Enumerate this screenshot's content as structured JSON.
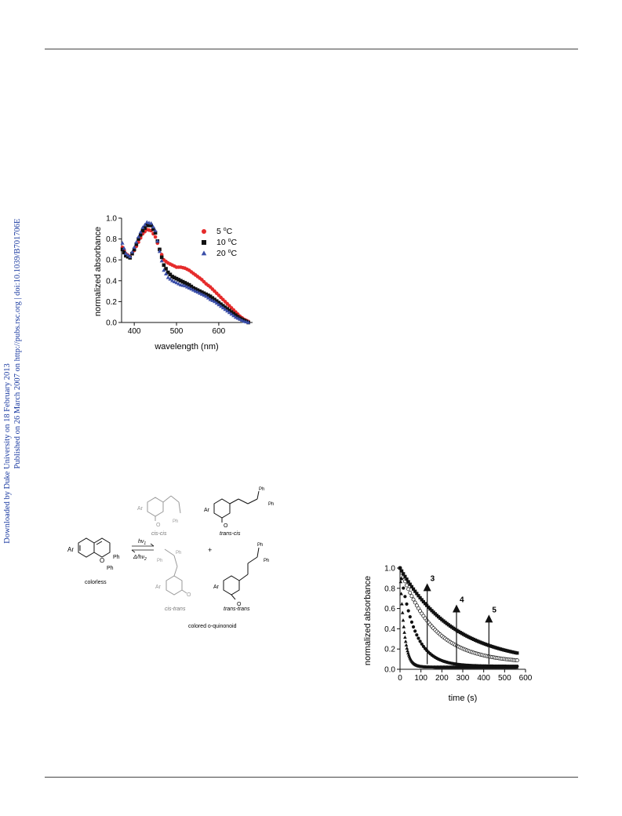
{
  "sidebar": {
    "line1": "Downloaded by Duke University on 18 February 2013",
    "line2": "Published on 26 March 2007 on http://pubs.rsc.org | doi:10.1039/B701706E",
    "color": "#1a3aa0"
  },
  "chart_data": [
    {
      "type": "scatter",
      "xlabel": "wavelength (nm)",
      "ylabel": "normalized absorbance",
      "xlim": [
        370,
        680
      ],
      "ylim": [
        0,
        1.0
      ],
      "xticks": [
        400,
        500,
        600
      ],
      "yticks": [
        0.0,
        0.2,
        0.4,
        0.6,
        0.8,
        1.0
      ],
      "legend_position": "top-right",
      "series": [
        {
          "name": "5 °C",
          "legend_value": "5",
          "unit": "°C",
          "color": "#e52b2b",
          "marker": "circle",
          "x": [
            372,
            380,
            390,
            400,
            410,
            420,
            430,
            440,
            450,
            460,
            470,
            480,
            490,
            500,
            510,
            520,
            530,
            540,
            550,
            560,
            570,
            580,
            590,
            600,
            610,
            620,
            630,
            640,
            650,
            660,
            670
          ],
          "y": [
            0.72,
            0.66,
            0.63,
            0.69,
            0.77,
            0.85,
            0.89,
            0.88,
            0.82,
            0.7,
            0.6,
            0.57,
            0.55,
            0.53,
            0.53,
            0.52,
            0.5,
            0.47,
            0.44,
            0.41,
            0.37,
            0.34,
            0.3,
            0.26,
            0.22,
            0.18,
            0.14,
            0.1,
            0.06,
            0.03,
            0.01
          ]
        },
        {
          "name": "10 °C",
          "legend_value": "10",
          "unit": "°C",
          "color": "#111111",
          "marker": "square",
          "x": [
            372,
            380,
            390,
            400,
            410,
            420,
            430,
            440,
            450,
            460,
            470,
            480,
            490,
            500,
            510,
            520,
            530,
            540,
            550,
            560,
            570,
            580,
            590,
            600,
            610,
            620,
            630,
            640,
            650,
            660,
            670
          ],
          "y": [
            0.7,
            0.64,
            0.62,
            0.7,
            0.8,
            0.88,
            0.93,
            0.93,
            0.86,
            0.7,
            0.55,
            0.48,
            0.44,
            0.42,
            0.4,
            0.38,
            0.36,
            0.33,
            0.31,
            0.29,
            0.27,
            0.25,
            0.22,
            0.19,
            0.16,
            0.13,
            0.1,
            0.07,
            0.04,
            0.02,
            0.0
          ]
        },
        {
          "name": "20 °C",
          "legend_value": "20",
          "unit": "°C",
          "color": "#3a4ea8",
          "marker": "triangle",
          "x": [
            372,
            380,
            390,
            400,
            410,
            420,
            430,
            440,
            450,
            460,
            470,
            480,
            490,
            500,
            510,
            520,
            530,
            540,
            550,
            560,
            570,
            580,
            590,
            600,
            610,
            620,
            630,
            640,
            650,
            660,
            670
          ],
          "y": [
            0.76,
            0.66,
            0.63,
            0.72,
            0.82,
            0.91,
            0.96,
            0.95,
            0.88,
            0.68,
            0.5,
            0.43,
            0.4,
            0.38,
            0.36,
            0.35,
            0.33,
            0.31,
            0.29,
            0.27,
            0.25,
            0.22,
            0.2,
            0.17,
            0.14,
            0.11,
            0.08,
            0.05,
            0.03,
            0.01,
            0.0
          ]
        }
      ]
    },
    {
      "type": "scatter",
      "xlabel": "time (s)",
      "ylabel": "normalized absorbance",
      "xlim": [
        0,
        600
      ],
      "ylim": [
        0,
        1.0
      ],
      "xticks": [
        0,
        100,
        200,
        300,
        400,
        500,
        600
      ],
      "yticks": [
        0.0,
        0.2,
        0.4,
        0.6,
        0.8,
        1.0
      ],
      "annotations": [
        {
          "label": "3",
          "x": 130,
          "y_from": 0.05,
          "y_to": 0.78
        },
        {
          "label": "4",
          "x": 270,
          "y_from": 0.05,
          "y_to": 0.57
        },
        {
          "label": "5",
          "x": 425,
          "y_from": 0.05,
          "y_to": 0.47
        }
      ],
      "series": [
        {
          "name": "",
          "color": "#111111",
          "marker": "triangle",
          "tau": 20,
          "baseline": 0.02
        },
        {
          "name": "",
          "color": "#111111",
          "marker": "circle",
          "tau": 70,
          "baseline": 0.03
        },
        {
          "name": "",
          "color": "#111111",
          "marker": "circle",
          "tau": 160,
          "baseline": 0.06
        },
        {
          "name": "",
          "color": "#111111",
          "marker": "square",
          "tau": 260,
          "baseline": 0.05
        }
      ]
    }
  ],
  "scheme": {
    "start": {
      "ar": "Ar",
      "ph1": "Ph",
      "ph2": "Ph",
      "label": "colorless"
    },
    "arrows": {
      "forward": "hν",
      "forward_sub": "1",
      "reverse": "Δ/hν",
      "reverse_sub": "2"
    },
    "plus": "+",
    "products": {
      "cis_cis": {
        "ar": "Ar",
        "o": "O",
        "ph": "Ph",
        "label": "cis-cis"
      },
      "trans_cis": {
        "ar": "Ar",
        "o": "O",
        "ph1": "Ph",
        "ph2": "Ph",
        "label": "trans-cis"
      },
      "cis_trans": {
        "ar": "Ar",
        "o": "O",
        "ph1": "Ph",
        "ph2": "Ph",
        "label": "cis-trans"
      },
      "trans_trans": {
        "ar": "Ar",
        "o": "O",
        "ph1": "Ph",
        "ph2": "Ph",
        "label": "trans-trans"
      }
    },
    "caption": "colored o-quinonoid"
  }
}
